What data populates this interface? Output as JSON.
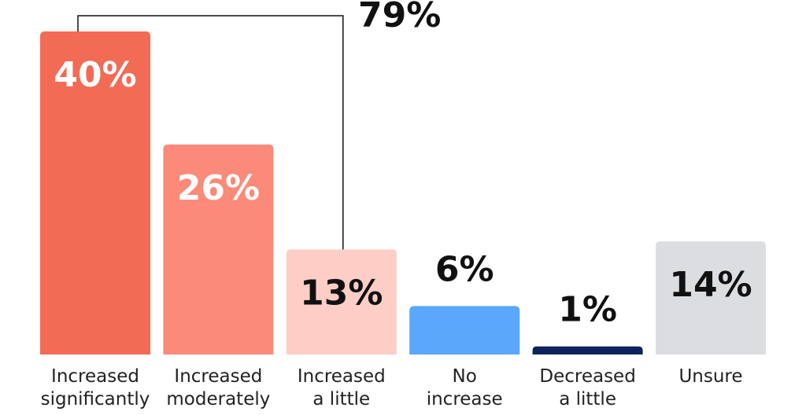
{
  "chart_data": {
    "type": "bar",
    "categories": [
      "Increased\nsignificantly",
      "Increased\nmoderately",
      "Increased\na little",
      "No\nincrease",
      "Decreased\na little",
      "Unsure"
    ],
    "values": [
      40,
      26,
      13,
      6,
      1,
      14
    ],
    "value_labels": [
      "40%",
      "26%",
      "13%",
      "6%",
      "1%",
      "14%"
    ],
    "colors": [
      "#f26b55",
      "#fb8a79",
      "#fdcdc6",
      "#5aa7fb",
      "#0e2260",
      "#dcdde0"
    ],
    "annotation": {
      "value": 79,
      "label": "79%"
    }
  }
}
